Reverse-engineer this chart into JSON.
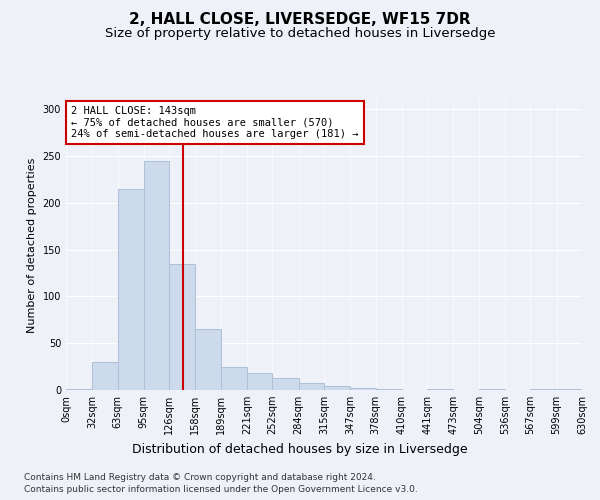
{
  "title": "2, HALL CLOSE, LIVERSEDGE, WF15 7DR",
  "subtitle": "Size of property relative to detached houses in Liversedge",
  "xlabel": "Distribution of detached houses by size in Liversedge",
  "ylabel": "Number of detached properties",
  "footer_line1": "Contains HM Land Registry data © Crown copyright and database right 2024.",
  "footer_line2": "Contains public sector information licensed under the Open Government Licence v3.0.",
  "bin_edges": [
    0,
    32,
    63,
    95,
    126,
    158,
    189,
    221,
    252,
    284,
    315,
    347,
    378,
    410,
    441,
    473,
    504,
    536,
    567,
    599,
    630
  ],
  "bin_labels": [
    "0sqm",
    "32sqm",
    "63sqm",
    "95sqm",
    "126sqm",
    "158sqm",
    "189sqm",
    "221sqm",
    "252sqm",
    "284sqm",
    "315sqm",
    "347sqm",
    "378sqm",
    "410sqm",
    "441sqm",
    "473sqm",
    "504sqm",
    "536sqm",
    "567sqm",
    "599sqm",
    "630sqm"
  ],
  "bar_values": [
    1,
    30,
    215,
    245,
    135,
    65,
    25,
    18,
    13,
    8,
    4,
    2,
    1,
    0,
    1,
    0,
    1,
    0,
    1,
    1
  ],
  "bar_color": "#ccdaec",
  "bar_edge_color": "#adc0d8",
  "property_size": 143,
  "vline_color": "#cc0000",
  "annotation_text": "2 HALL CLOSE: 143sqm\n← 75% of detached houses are smaller (570)\n24% of semi-detached houses are larger (181) →",
  "annotation_box_color": "#ffffff",
  "annotation_box_edge": "#cc0000",
  "ylim": [
    0,
    310
  ],
  "yticks": [
    0,
    50,
    100,
    150,
    200,
    250,
    300
  ],
  "title_fontsize": 11,
  "subtitle_fontsize": 9.5,
  "ylabel_fontsize": 8,
  "xlabel_fontsize": 9,
  "tick_fontsize": 7,
  "annotation_fontsize": 7.5,
  "footer_fontsize": 6.5,
  "bg_color": "#eef2f8",
  "plot_bg_color": "#eef2f8"
}
